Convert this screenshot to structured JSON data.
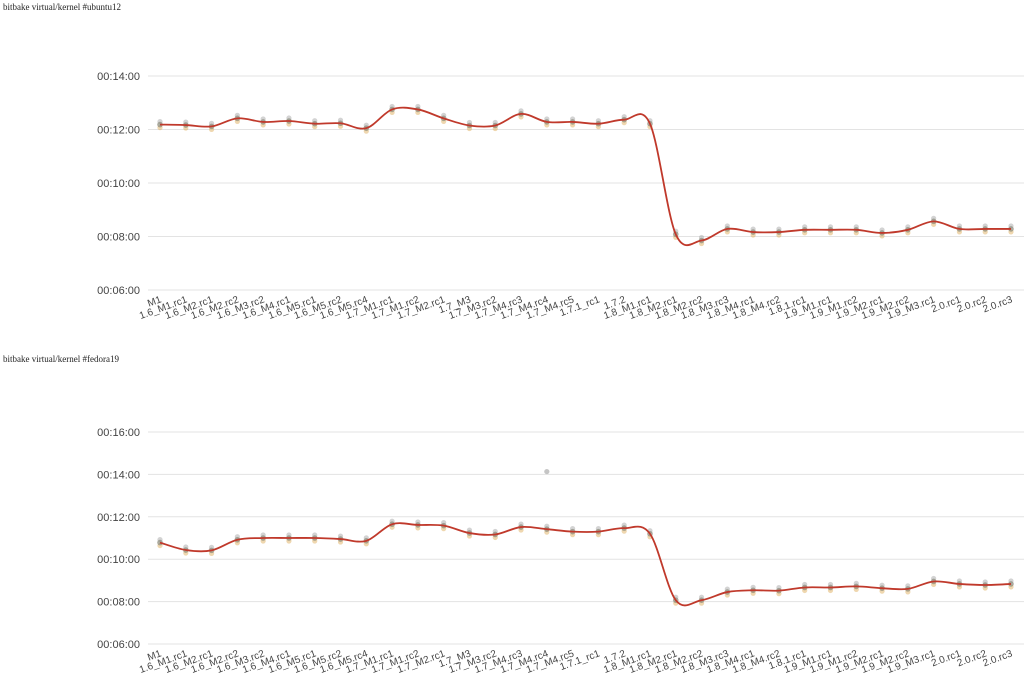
{
  "chart_data": [
    {
      "type": "line",
      "title": "bitbake virtual/kernel #ubuntu12",
      "categories": [
        "M1",
        "1.6_M1.rc1",
        "1.6_M2.rc1",
        "1.6_M2.rc2",
        "1.6_M3.rc2",
        "1.6_M4.rc1",
        "1.6_M5.rc1",
        "1.6_M5.rc2",
        "1.6_M5.rc4",
        "1.7_M1.rc1",
        "1.7_M1.rc2",
        "1.7_M2.rc1",
        "1.7_M3",
        "1.7_M3.rc2",
        "1.7_M4.rc3",
        "1.7_M4.rc4",
        "1.7_M4.rc5",
        "1.7.1_rc1",
        "1.7.2",
        "1.8_M1.rc1",
        "1.8_M2.rc1",
        "1.8_M2.rc2",
        "1.8_M3.rc3",
        "1.8_M4.rc1",
        "1.8_M4.rc2",
        "1.8.1.rc1",
        "1.9_M1.rc1",
        "1.9_M1.rc2",
        "1.9_M2.rc1",
        "1.9_M2.rc2",
        "1.9_M3.rc1",
        "2.0.rc1",
        "2.0.rc2",
        "2.0.rc3"
      ],
      "values": [
        "12:11",
        "12:10",
        "12:07",
        "12:25",
        "12:17",
        "12:19",
        "12:13",
        "12:14",
        "12:03",
        "12:45",
        "12:45",
        "12:25",
        "12:09",
        "12:09",
        "12:35",
        "12:17",
        "12:17",
        "12:13",
        "12:22",
        "12:13",
        "08:05",
        "07:51",
        "08:17",
        "08:10",
        "08:10",
        "08:15",
        "08:15",
        "08:15",
        "08:08",
        "08:15",
        "08:34",
        "08:17",
        "08:17",
        "08:17"
      ],
      "yticks": [
        "00:06:00",
        "00:08:00",
        "00:10:00",
        "00:12:00",
        "00:14:00"
      ],
      "ylim": [
        "06:00",
        "14:00"
      ],
      "grid": true,
      "line_color": "#c0392b",
      "point_colors": [
        "#9e9e9e",
        "#e0b060"
      ]
    },
    {
      "type": "line",
      "title": "bitbake virtual/kernel #fedora19",
      "categories": [
        "M1",
        "1.6_M1.rc1",
        "1.6_M2.rc1",
        "1.6_M2.rc2",
        "1.6_M3.rc2",
        "1.6_M4.rc1",
        "1.6_M5.rc1",
        "1.6_M5.rc2",
        "1.6_M5.rc4",
        "1.7_M1.rc1",
        "1.7_M1.rc2",
        "1.7_M2.rc1",
        "1.7_M3",
        "1.7_M3.rc2",
        "1.7_M4.rc3",
        "1.7_M4.rc4",
        "1.7_M4.rc5",
        "1.7.1_rc1",
        "1.7.2",
        "1.8_M1.rc1",
        "1.8_M2.rc1",
        "1.8_M2.rc2",
        "1.8_M3.rc3",
        "1.8_M4.rc1",
        "1.8_M4.rc2",
        "1.8.1.rc1",
        "1.9_M1.rc1",
        "1.9_M1.rc2",
        "1.9_M2.rc1",
        "1.9_M2.rc2",
        "1.9_M3.rc1",
        "2.0.rc1",
        "2.0.rc2",
        "2.0.rc3"
      ],
      "values": [
        "10:47",
        "10:26",
        "10:25",
        "10:55",
        "11:00",
        "11:00",
        "11:00",
        "10:57",
        "10:52",
        "11:39",
        "11:37",
        "11:35",
        "11:14",
        "11:10",
        "11:31",
        "11:25",
        "11:18",
        "11:18",
        "11:28",
        "11:12",
        "08:04",
        "08:04",
        "08:27",
        "08:32",
        "08:31",
        "08:40",
        "08:40",
        "08:43",
        "08:38",
        "08:36",
        "08:57",
        "08:50",
        "08:47",
        "08:50"
      ],
      "outliers": [
        {
          "category": "1.7_M4.rc4",
          "value": "14:08"
        }
      ],
      "yticks": [
        "00:06:00",
        "00:08:00",
        "00:10:00",
        "00:12:00",
        "00:14:00",
        "00:16:00"
      ],
      "ylim": [
        "06:00",
        "16:00"
      ],
      "grid": true,
      "line_color": "#c0392b",
      "point_colors": [
        "#9e9e9e",
        "#e0b060"
      ]
    }
  ]
}
